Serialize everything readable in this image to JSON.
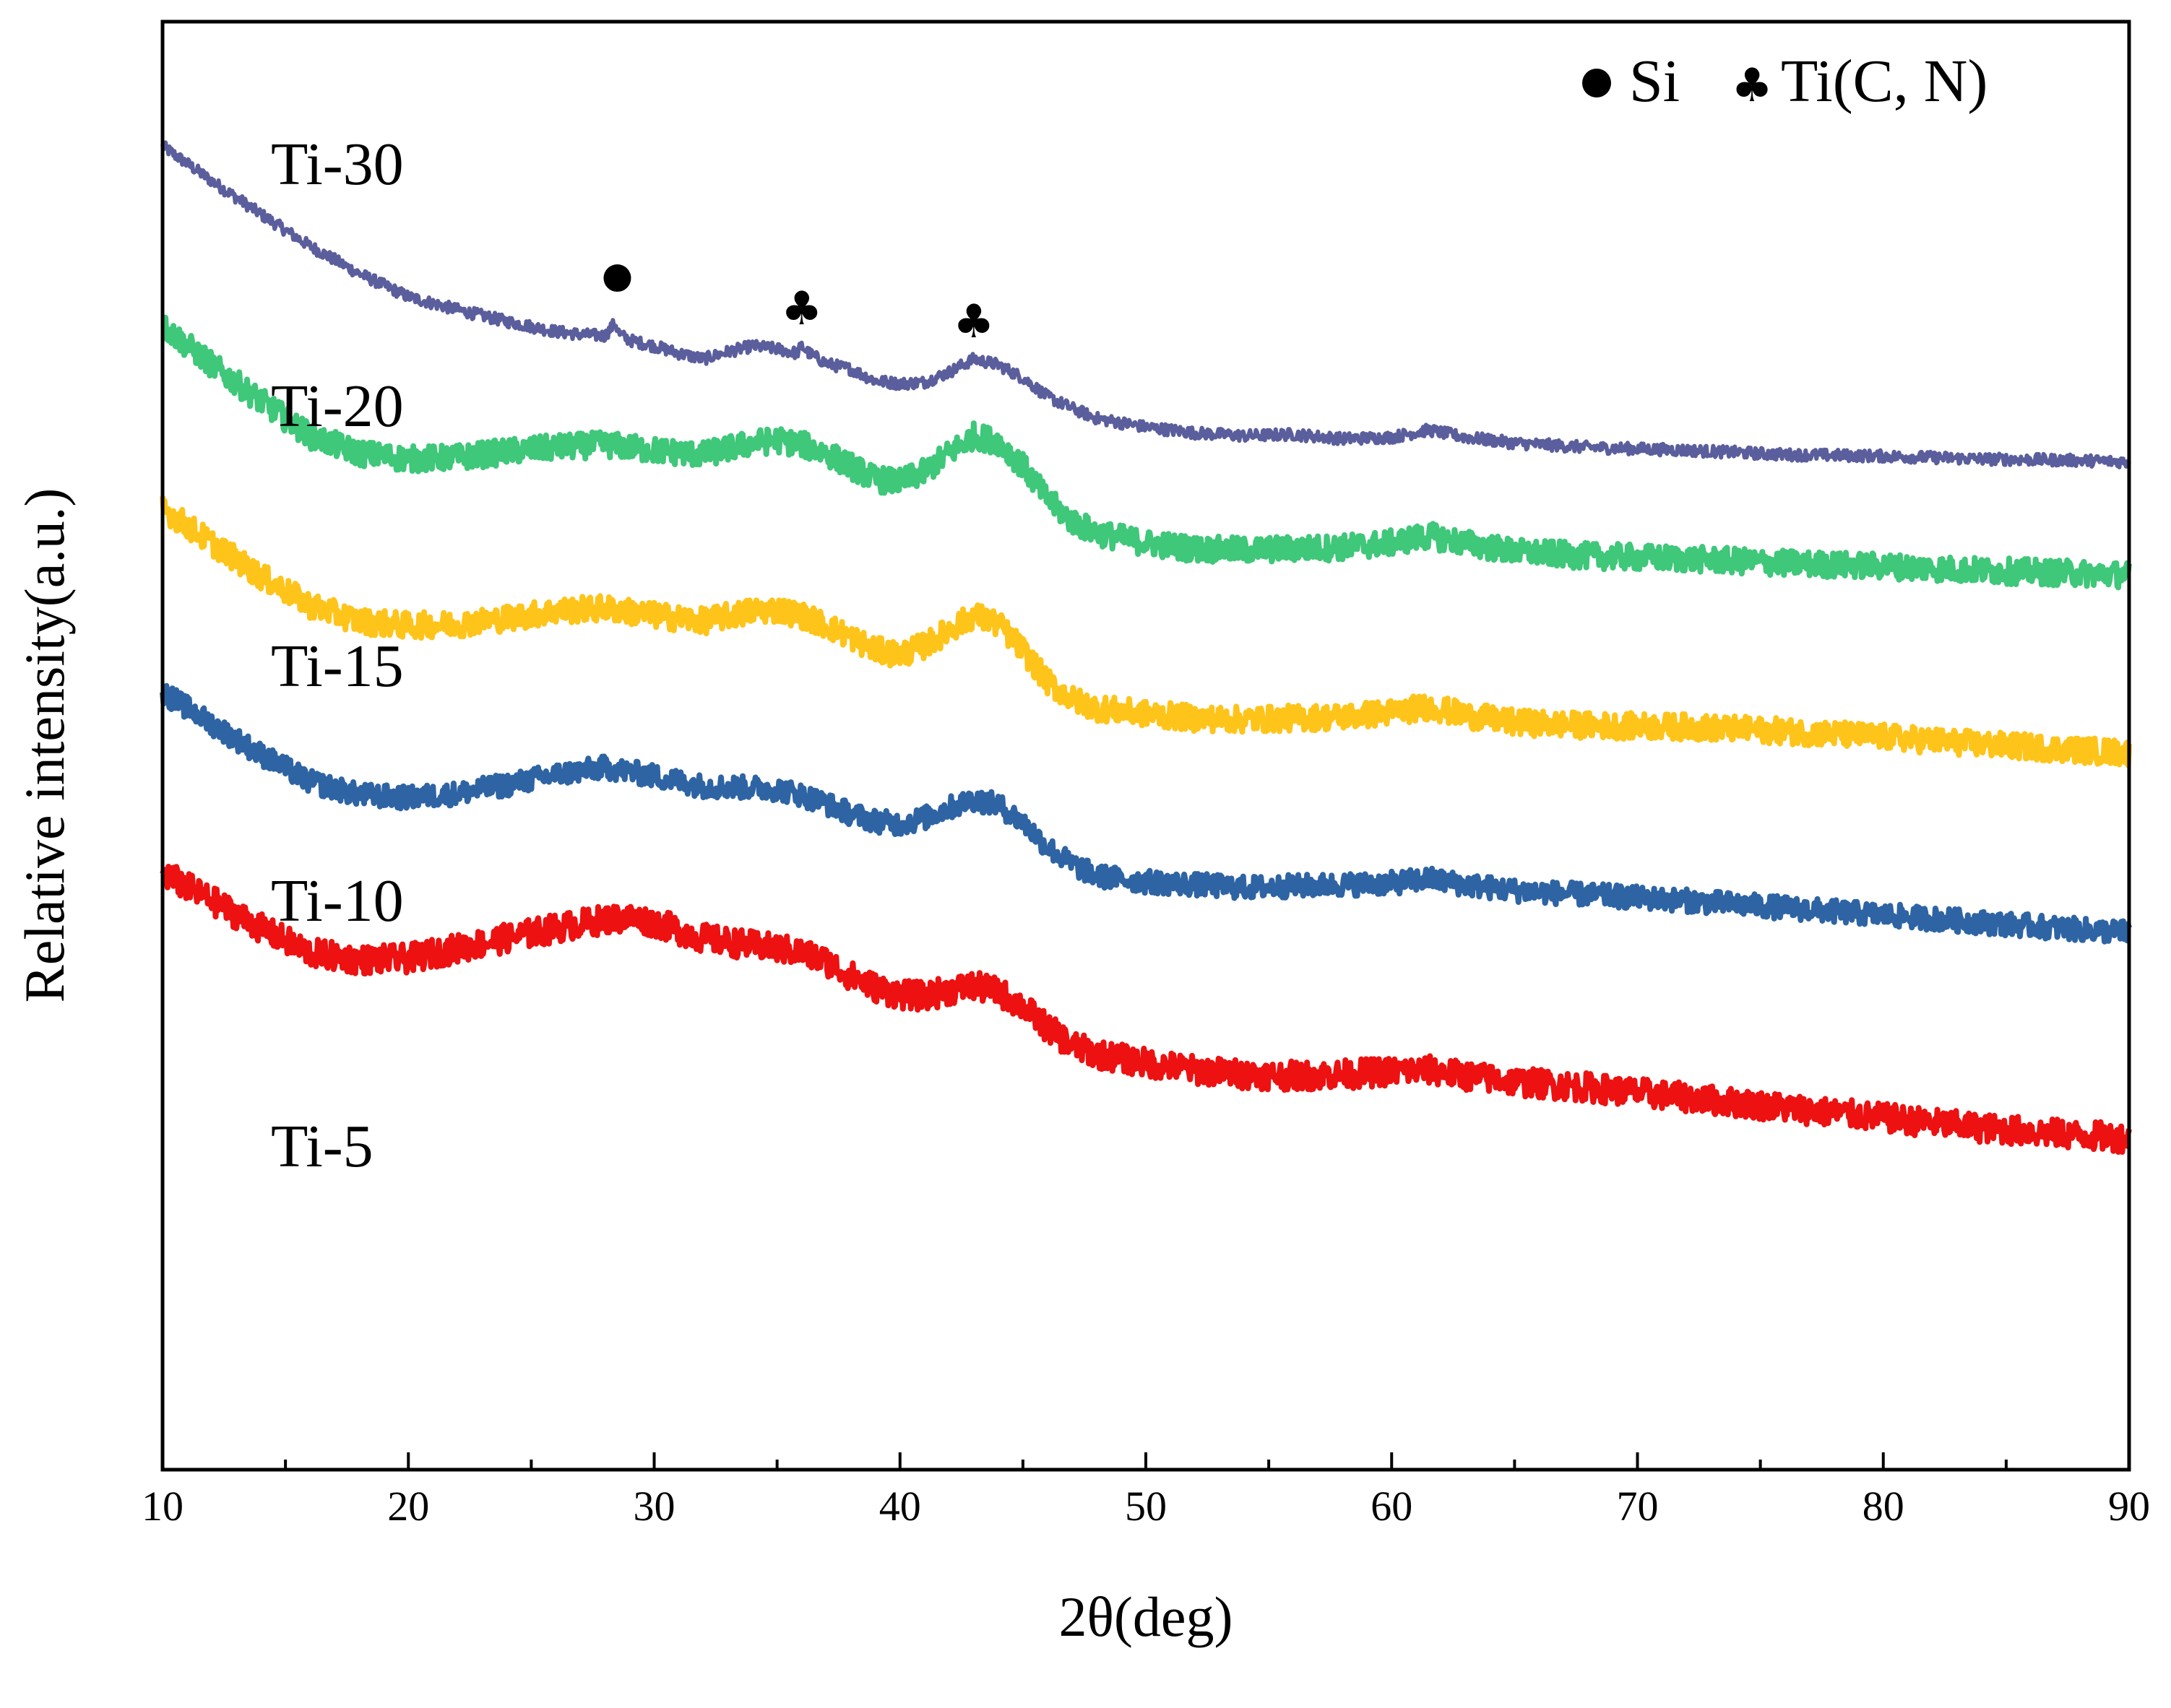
{
  "chart_data": {
    "type": "line",
    "title": "",
    "xlabel": "2θ(deg)",
    "ylabel": "Relative intensity(a.u.)",
    "xlim": [
      10,
      90
    ],
    "xticks": [
      10,
      20,
      30,
      40,
      50,
      60,
      70,
      80,
      90
    ],
    "xtick_labels": [
      "10",
      "20",
      "30",
      "40",
      "50",
      "60",
      "70",
      "80",
      "90"
    ],
    "ylim": [
      0,
      1000
    ],
    "grid": false,
    "legend": {
      "position": "top-right",
      "entries": [
        {
          "marker": "circle",
          "label": "Si"
        },
        {
          "marker": "club",
          "label": "Ti(C, N)"
        }
      ]
    },
    "annotations": [
      {
        "series": "Ti-30",
        "x": 28.5,
        "marker": "circle",
        "phase": "Si"
      },
      {
        "series": "Ti-30",
        "x": 36.0,
        "marker": "club",
        "phase": "Ti(C, N)"
      },
      {
        "series": "Ti-30",
        "x": 43.0,
        "marker": "club",
        "phase": "Ti(C, N)"
      }
    ],
    "series": [
      {
        "name": "Ti-30",
        "label": "Ti-30",
        "color": "#5b5e9c",
        "noise": 4,
        "x": [
          10,
          12,
          14,
          16,
          18,
          20,
          22,
          24,
          26,
          27,
          28,
          28.4,
          28.6,
          29,
          30,
          31,
          32,
          33,
          34,
          35,
          35.8,
          36,
          36.3,
          37,
          38,
          39,
          40,
          41,
          42,
          43,
          44,
          45,
          46,
          47,
          48,
          50,
          52,
          54,
          56,
          58,
          60,
          61.5,
          63,
          65,
          68,
          72,
          76,
          80,
          84,
          88,
          90
        ],
        "y": [
          914,
          890,
          867,
          845,
          826,
          810,
          801,
          793,
          786,
          784,
          783,
          792,
          784,
          780,
          776,
          771,
          767,
          772,
          776,
          774,
          771,
          776,
          771,
          764,
          760,
          752,
          750,
          751,
          758,
          767,
          763,
          754,
          741,
          733,
          726,
          720,
          716,
          714,
          715,
          712,
          713,
          718,
          713,
          709,
          706,
          704,
          701,
          700,
          698,
          697,
          696
        ]
      },
      {
        "name": "Ti-20",
        "label": "Ti-20",
        "color": "#3fc77a",
        "noise": 9,
        "x": [
          10,
          12,
          14,
          16,
          18,
          20,
          22,
          24,
          26,
          28,
          30,
          32,
          34,
          35,
          36,
          37,
          38,
          39,
          40,
          41,
          42,
          43,
          44,
          45,
          46,
          47,
          48,
          50,
          52,
          54,
          56,
          58,
          60,
          61.5,
          63,
          65,
          68,
          72,
          76,
          80,
          84,
          88,
          90
        ],
        "y": [
          790,
          763,
          738,
          714,
          702,
          698,
          699,
          703,
          706,
          708,
          704,
          701,
          709,
          711,
          708,
          702,
          693,
          684,
          682,
          689,
          702,
          714,
          710,
          693,
          670,
          655,
          647,
          640,
          636,
          635,
          636,
          637,
          640,
          645,
          640,
          634,
          631,
          629,
          626,
          624,
          621,
          619,
          618
        ]
      },
      {
        "name": "Ti-15",
        "label": "Ti-15",
        "color": "#ffc41a",
        "noise": 9,
        "x": [
          10,
          12,
          14,
          16,
          18,
          20,
          22,
          24,
          26,
          28,
          30,
          32,
          34,
          35,
          36,
          37,
          38,
          39,
          40,
          41,
          42,
          43,
          44,
          45,
          46,
          47,
          48,
          50,
          52,
          54,
          56,
          58,
          60,
          61.5,
          63,
          65,
          68,
          72,
          76,
          80,
          84,
          88,
          90
        ],
        "y": [
          664,
          640,
          617,
          597,
          586,
          583,
          584,
          588,
          593,
          595,
          590,
          586,
          593,
          594,
          590,
          583,
          575,
          566,
          563,
          569,
          580,
          590,
          584,
          566,
          544,
          532,
          526,
          522,
          519,
          518,
          519,
          520,
          523,
          527,
          521,
          516,
          514,
          513,
          510,
          506,
          501,
          497,
          495
        ]
      },
      {
        "name": "Ti-10",
        "label": "Ti-10",
        "color": "#2e64a4",
        "noise": 8,
        "x": [
          10,
          12,
          14,
          16,
          18,
          20,
          22,
          24,
          26,
          28,
          30,
          32,
          34,
          35,
          36,
          37,
          38,
          39,
          40,
          41,
          42,
          43,
          44,
          45,
          46,
          47,
          48,
          50,
          52,
          54,
          56,
          58,
          60,
          61.5,
          63,
          65,
          68,
          72,
          76,
          80,
          84,
          88,
          90
        ],
        "y": [
          537,
          515,
          494,
          475,
          466,
          464,
          467,
          473,
          480,
          485,
          479,
          472,
          471,
          470,
          466,
          460,
          453,
          448,
          446,
          450,
          457,
          463,
          459,
          447,
          430,
          418,
          410,
          406,
          404,
          402,
          403,
          404,
          405,
          408,
          404,
          400,
          397,
          393,
          388,
          383,
          378,
          373,
          371
        ]
      },
      {
        "name": "Ti-5",
        "label": "Ti-5",
        "color": "#ee1111",
        "noise": 10,
        "x": [
          10,
          12,
          14,
          16,
          18,
          20,
          22,
          24,
          26,
          28,
          29,
          30,
          32,
          34,
          35,
          36,
          37,
          38,
          39,
          40,
          41,
          42,
          43,
          44,
          45,
          46,
          47,
          48,
          50,
          52,
          54,
          56,
          58,
          60,
          61.5,
          63,
          65,
          68,
          72,
          76,
          80,
          84,
          88,
          90
        ],
        "y": [
          412,
          393,
          374,
          357,
          352,
          353,
          360,
          367,
          374,
          380,
          381,
          378,
          367,
          362,
          360,
          357,
          351,
          341,
          333,
          328,
          327,
          331,
          334,
          330,
          320,
          305,
          293,
          287,
          281,
          276,
          273,
          272,
          273,
          275,
          276,
          272,
          268,
          264,
          257,
          250,
          243,
          236,
          231,
          229
        ]
      }
    ]
  }
}
